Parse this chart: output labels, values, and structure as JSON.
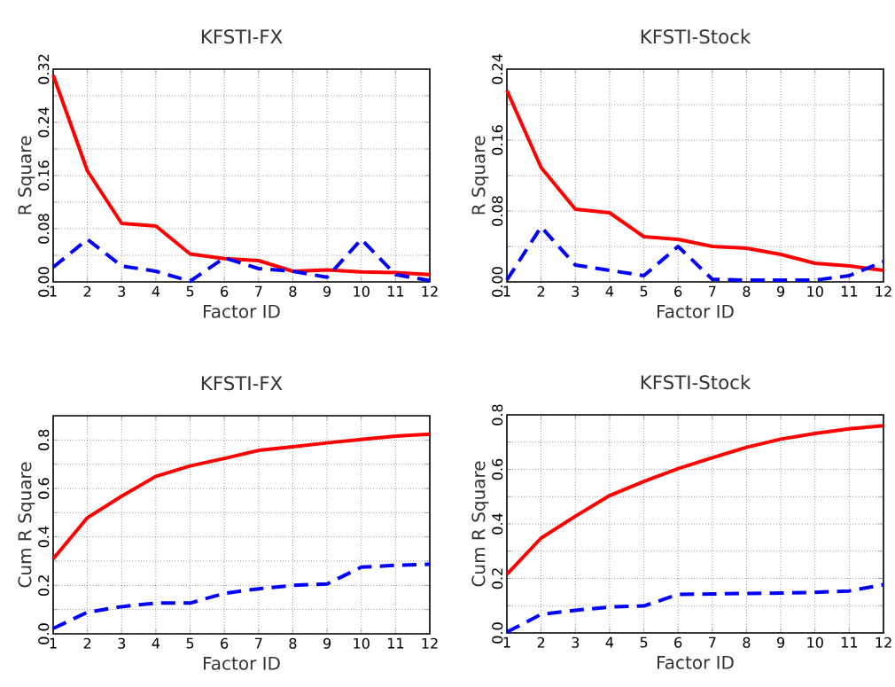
{
  "chart_data": [
    {
      "type": "line",
      "title": "KFSTI-FX",
      "xlabel": "Factor ID",
      "ylabel": "R Square",
      "x": [
        1,
        2,
        3,
        4,
        5,
        6,
        7,
        8,
        9,
        10,
        11,
        12
      ],
      "xlim": [
        1,
        12
      ],
      "xticks": [
        1,
        2,
        3,
        4,
        5,
        6,
        7,
        8,
        9,
        10,
        11,
        12
      ],
      "ylim": [
        0,
        0.32
      ],
      "yticks": [
        {
          "value": 0,
          "label": "0.00"
        },
        {
          "value": 0.04,
          "label": null
        },
        0.08,
        {
          "value": 0.12,
          "label": null
        },
        0.16,
        {
          "value": 0.2,
          "label": null
        },
        0.24,
        {
          "value": 0.28,
          "label": null
        },
        0.32
      ],
      "grid": true,
      "series": [
        {
          "color": "#ff0000",
          "line_style": "solid",
          "values": [
            0.311,
            0.167,
            0.088,
            0.084,
            0.042,
            0.035,
            0.032,
            0.016,
            0.018,
            0.015,
            0.014,
            0.011
          ]
        },
        {
          "color": "#0000ff",
          "line_style": "dashed",
          "values": [
            0.022,
            0.064,
            0.024,
            0.016,
            0.001,
            0.036,
            0.02,
            0.016,
            0.007,
            0.064,
            0.011,
            0.002
          ]
        }
      ]
    },
    {
      "type": "line",
      "title": "KFSTI-Stock",
      "xlabel": "Factor ID",
      "ylabel": "R Square",
      "x": [
        1,
        2,
        3,
        4,
        5,
        6,
        7,
        8,
        9,
        10,
        11,
        12
      ],
      "xlim": [
        1,
        12
      ],
      "xticks": [
        1,
        2,
        3,
        4,
        5,
        6,
        7,
        8,
        9,
        10,
        11,
        12
      ],
      "ylim": [
        0,
        0.24
      ],
      "yticks": [
        {
          "value": 0,
          "label": "0.00"
        },
        {
          "value": 0.04,
          "label": null
        },
        0.08,
        {
          "value": 0.12,
          "label": null
        },
        0.16,
        {
          "value": 0.2,
          "label": null
        },
        0.24
      ],
      "grid": true,
      "series": [
        {
          "color": "#ff0000",
          "line_style": "solid",
          "values": [
            0.216,
            0.129,
            0.082,
            0.078,
            0.051,
            0.048,
            0.04,
            0.038,
            0.031,
            0.021,
            0.018,
            0.013
          ]
        },
        {
          "color": "#0000ff",
          "line_style": "dashed",
          "values": [
            0.002,
            0.062,
            0.019,
            0.013,
            0.007,
            0.04,
            0.003,
            0.002,
            0.002,
            0.002,
            0.007,
            0.023
          ]
        }
      ]
    },
    {
      "type": "line",
      "title": "KFSTI-FX",
      "xlabel": "Factor ID",
      "ylabel": "Cum R Square",
      "x": [
        1,
        2,
        3,
        4,
        5,
        6,
        7,
        8,
        9,
        10,
        11,
        12
      ],
      "xlim": [
        1,
        12
      ],
      "xticks": [
        1,
        2,
        3,
        4,
        5,
        6,
        7,
        8,
        9,
        10,
        11,
        12
      ],
      "ylim": [
        0,
        0.9
      ],
      "yticks": [
        {
          "value": 0,
          "label": "0.0"
        },
        {
          "value": 0.1,
          "label": null
        },
        0.2,
        {
          "value": 0.3,
          "label": null
        },
        0.4,
        {
          "value": 0.5,
          "label": null
        },
        0.6,
        {
          "value": 0.7,
          "label": null
        },
        0.8
      ],
      "grid": true,
      "series": [
        {
          "color": "#ff0000",
          "line_style": "solid",
          "values": [
            0.309,
            0.479,
            0.568,
            0.65,
            0.693,
            0.724,
            0.757,
            0.772,
            0.788,
            0.802,
            0.816,
            0.824
          ]
        },
        {
          "color": "#0000ff",
          "line_style": "dashed",
          "values": [
            0.022,
            0.089,
            0.112,
            0.127,
            0.127,
            0.167,
            0.186,
            0.2,
            0.206,
            0.275,
            0.283,
            0.287
          ]
        }
      ]
    },
    {
      "type": "line",
      "title": "KFSTI-Stock",
      "xlabel": "Factor ID",
      "ylabel": "Cum R Square",
      "x": [
        1,
        2,
        3,
        4,
        5,
        6,
        7,
        8,
        9,
        10,
        11,
        12
      ],
      "xlim": [
        1,
        12
      ],
      "xticks": [
        1,
        2,
        3,
        4,
        5,
        6,
        7,
        8,
        9,
        10,
        11,
        12
      ],
      "ylim": [
        0,
        0.8
      ],
      "yticks": [
        {
          "value": 0,
          "label": "0.0"
        },
        {
          "value": 0.1,
          "label": null
        },
        0.2,
        {
          "value": 0.3,
          "label": null
        },
        0.4,
        {
          "value": 0.5,
          "label": null
        },
        0.6,
        {
          "value": 0.7,
          "label": null
        },
        0.8
      ],
      "grid": true,
      "series": [
        {
          "color": "#ff0000",
          "line_style": "solid",
          "values": [
            0.215,
            0.348,
            0.428,
            0.504,
            0.556,
            0.603,
            0.643,
            0.681,
            0.711,
            0.732,
            0.749,
            0.76
          ]
        },
        {
          "color": "#0000ff",
          "line_style": "dashed",
          "values": [
            0.003,
            0.068,
            0.083,
            0.095,
            0.099,
            0.141,
            0.143,
            0.145,
            0.146,
            0.149,
            0.154,
            0.177
          ]
        }
      ]
    }
  ]
}
